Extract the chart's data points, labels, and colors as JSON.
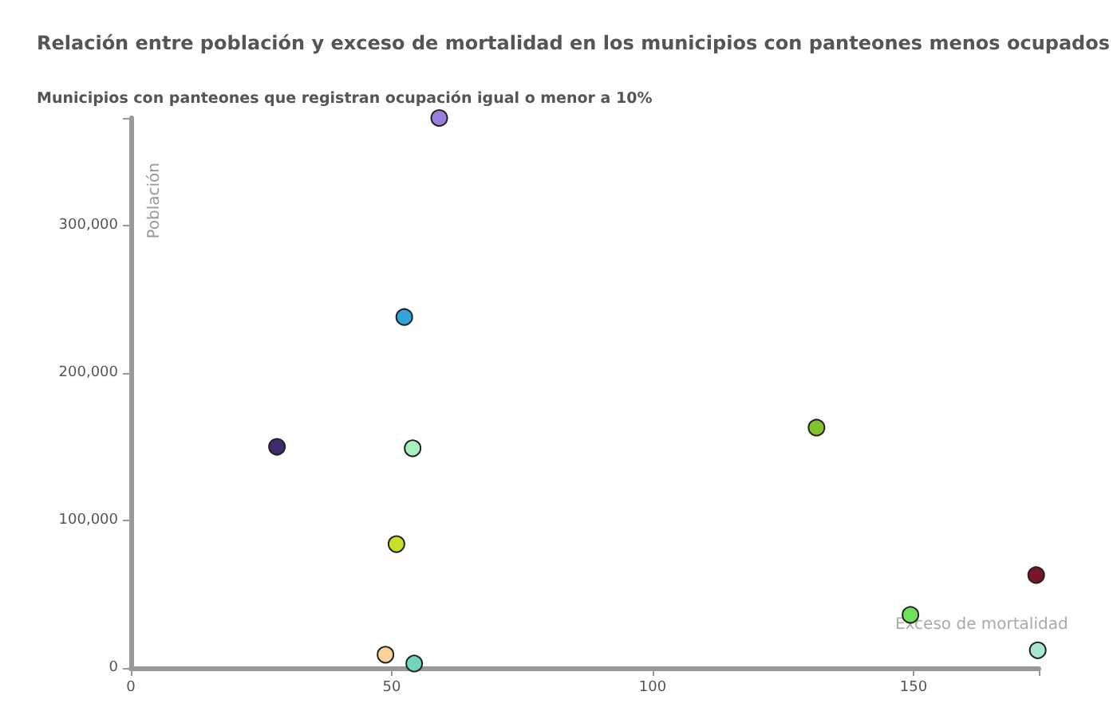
{
  "chart_data": {
    "type": "scatter",
    "title": "Relación entre población y exceso de mortalidad en los municipios con panteones menos ocupados",
    "subtitle": "Municipios con panteones que registran ocupación igual o menor a 10%",
    "xlabel": "Exceso de mortalidad",
    "ylabel": "Población",
    "x": [
      59.1,
      52.4,
      28,
      54,
      131.4,
      50.9,
      173.5,
      149.4,
      48.8,
      54.3,
      173.8
    ],
    "values": [
      373000,
      238000,
      150000,
      149000,
      163000,
      84000,
      63000,
      36000,
      9000,
      3000,
      12000
    ],
    "colors": [
      "#9b7fdc",
      "#2ea6d9",
      "#3f2a6b",
      "#a8f0c0",
      "#7fc42a",
      "#c8e02a",
      "#7a1428",
      "#6ee05a",
      "#fcd29a",
      "#6fd6bd",
      "#a8e6d6"
    ],
    "marker": "circle",
    "xlim": [
      0,
      174
    ],
    "ylim": [
      0,
      373000
    ],
    "xticks": [
      0,
      50,
      100,
      150,
      {
        "value": 174,
        "label": null
      }
    ],
    "yticks": [
      0,
      {
        "value": 100000,
        "label": "100,000"
      },
      {
        "value": 200000,
        "label": "200,000"
      },
      {
        "value": 300000,
        "label": "300,000"
      },
      {
        "value": 373000,
        "label": null
      }
    ],
    "grid": false
  }
}
